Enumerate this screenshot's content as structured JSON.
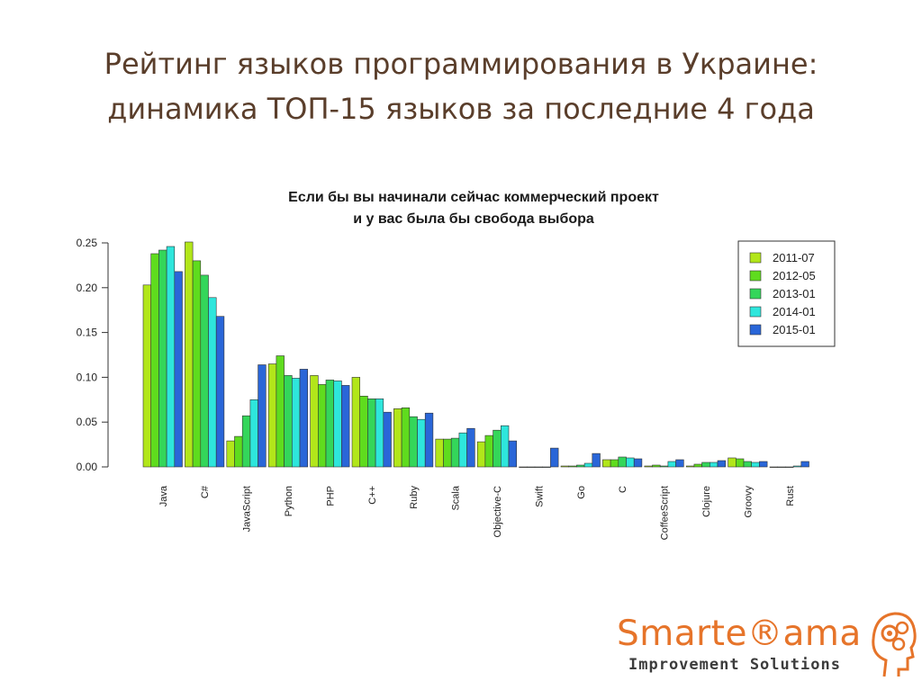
{
  "slide": {
    "title_line1": "Рейтинг языков программирования в Украине:",
    "title_line2": "динамика ТОП-15 языков за последние 4 года"
  },
  "logo": {
    "name": "Smarte®ama",
    "tagline": "Improvement Solutions",
    "color": "#e6742a"
  },
  "chart_data": {
    "type": "bar",
    "title_line1": "Если бы вы начинали сейчас коммерческий проект",
    "title_line2": "и у вас была бы свобода выбора",
    "categories": [
      "Java",
      "C#",
      "JavaScript",
      "Python",
      "PHP",
      "C++",
      "Ruby",
      "Scala",
      "Objective-C",
      "Swift",
      "Go",
      "C",
      "CoffeeScript",
      "Clojure",
      "Groovy",
      "Rust"
    ],
    "series": [
      {
        "name": "2011-07",
        "color": "#b2e61a",
        "values": [
          0.203,
          0.251,
          0.029,
          0.115,
          0.102,
          0.1,
          0.065,
          0.031,
          0.028,
          0.0,
          0.001,
          0.008,
          0.001,
          0.001,
          0.01,
          0.0
        ]
      },
      {
        "name": "2012-05",
        "color": "#5fdc1e",
        "values": [
          0.238,
          0.23,
          0.034,
          0.124,
          0.092,
          0.079,
          0.066,
          0.031,
          0.035,
          0.0,
          0.001,
          0.008,
          0.002,
          0.003,
          0.009,
          0.0
        ]
      },
      {
        "name": "2013-01",
        "color": "#34d65a",
        "values": [
          0.242,
          0.214,
          0.057,
          0.102,
          0.097,
          0.076,
          0.056,
          0.032,
          0.041,
          0.0,
          0.002,
          0.011,
          0.001,
          0.005,
          0.006,
          0.0
        ]
      },
      {
        "name": "2014-01",
        "color": "#2ee6dc",
        "values": [
          0.246,
          0.189,
          0.075,
          0.099,
          0.096,
          0.076,
          0.053,
          0.038,
          0.046,
          0.0,
          0.004,
          0.01,
          0.006,
          0.005,
          0.005,
          0.001
        ]
      },
      {
        "name": "2015-01",
        "color": "#2a66d8",
        "values": [
          0.218,
          0.168,
          0.114,
          0.109,
          0.091,
          0.061,
          0.06,
          0.043,
          0.029,
          0.021,
          0.015,
          0.009,
          0.008,
          0.007,
          0.006,
          0.006
        ]
      }
    ],
    "yticks": [
      "0.00",
      "0.05",
      "0.10",
      "0.15",
      "0.20",
      "0.25"
    ],
    "ylim": [
      0,
      0.25
    ],
    "legend_position": "top-right",
    "grid": false
  }
}
